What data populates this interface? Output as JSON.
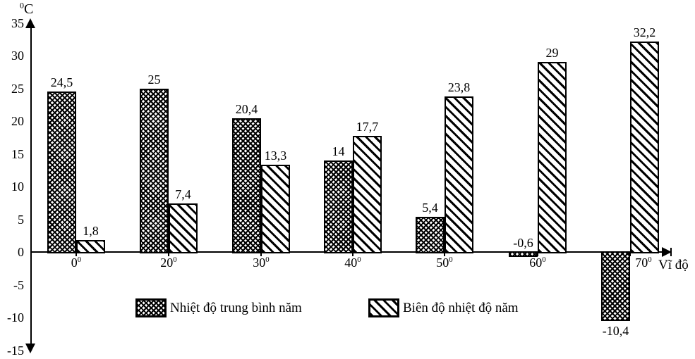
{
  "chart_data": {
    "type": "bar",
    "title": "",
    "categories": [
      "0",
      "20",
      "30",
      "40",
      "50",
      "60",
      "70"
    ],
    "category_suffix_sup": "0",
    "x_axis": {
      "label": "Vĩ độ"
    },
    "y_axis": {
      "label_sup": "0",
      "label_main": "C",
      "tick_values": [
        35,
        30,
        25,
        20,
        15,
        10,
        5,
        0,
        -5,
        -10,
        -15
      ],
      "tick_labels": [
        "35",
        "30",
        "25",
        "20",
        "15",
        "10",
        "5",
        "0",
        "-5",
        "-10",
        "-15"
      ],
      "min": -15,
      "max": 35
    },
    "grid": false,
    "legend_position": "bottom-inside",
    "series": [
      {
        "name": "Nhiệt độ trung bình năm",
        "pattern": "checker",
        "values": [
          24.5,
          25,
          20.4,
          14,
          5.4,
          -0.6,
          -10.4
        ],
        "value_labels": [
          "24,5",
          "25",
          "20,4",
          "14",
          "5,4",
          "-0,6",
          "-10,4"
        ]
      },
      {
        "name": "Biên độ nhiệt độ năm",
        "pattern": "diagonal-stripe",
        "values": [
          1.8,
          7.4,
          13.3,
          17.7,
          23.8,
          29,
          32.2
        ],
        "value_labels": [
          "1,8",
          "7,4",
          "13,3",
          "17,7",
          "23,8",
          "29",
          "32,2"
        ]
      }
    ],
    "colors": {
      "foreground": "#000000",
      "background": "#ffffff"
    }
  }
}
